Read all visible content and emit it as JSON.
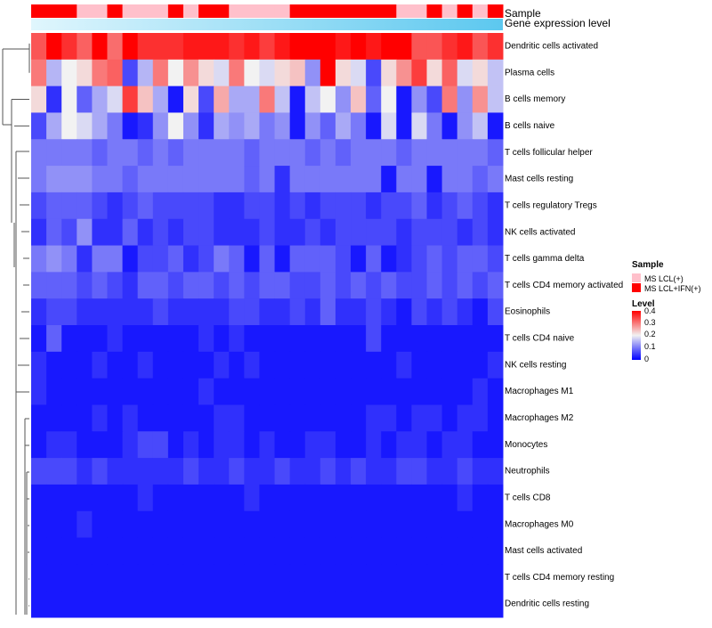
{
  "chart_data": {
    "type": "heatmap",
    "title": "",
    "annotation_rows": [
      {
        "name": "Sample",
        "kind": "categorical"
      },
      {
        "name": "Gene expression level",
        "kind": "continuous"
      }
    ],
    "sample_groups": [
      "MS LCL(+)",
      "MS LCL+IFN(+)"
    ],
    "sample_group_colors": {
      "MS LCL(+)": "#ffc0cb",
      "MS LCL+IFN(+)": "#ff0000"
    },
    "sample_annotation": [
      1,
      1,
      1,
      0,
      0,
      1,
      0,
      0,
      0,
      1,
      0,
      1,
      1,
      0,
      0,
      0,
      0,
      1,
      1,
      1,
      1,
      1,
      1,
      1,
      0,
      0,
      1,
      0,
      1,
      0,
      1
    ],
    "gene_expression_color": "#87ceeb",
    "row_labels": [
      "Dendritic cells activated",
      "Plasma cells",
      "B cells memory",
      "B cells naive",
      "T cells follicular helper",
      "Mast cells resting",
      "T cells regulatory  Tregs",
      "NK cells activated",
      "T cells gamma delta",
      "T cells CD4 memory activated",
      "Eosinophils",
      "T cells CD4 naive",
      "NK cells resting",
      "Macrophages M1",
      "Macrophages M2",
      "Monocytes",
      "Neutrophils",
      "T cells CD8",
      "Macrophages M0",
      "Mast cells activated",
      "T cells CD4 memory resting",
      "Dendritic cells resting"
    ],
    "values": [
      [
        0.33,
        0.4,
        0.36,
        0.32,
        0.4,
        0.31,
        0.4,
        0.36,
        0.36,
        0.36,
        0.38,
        0.38,
        0.38,
        0.36,
        0.38,
        0.35,
        0.38,
        0.4,
        0.4,
        0.4,
        0.38,
        0.4,
        0.38,
        0.4,
        0.4,
        0.33,
        0.33,
        0.36,
        0.38,
        0.33,
        0.36
      ],
      [
        0.3,
        0.15,
        0.2,
        0.22,
        0.3,
        0.32,
        0.06,
        0.15,
        0.3,
        0.2,
        0.28,
        0.22,
        0.18,
        0.3,
        0.2,
        0.18,
        0.22,
        0.24,
        0.12,
        0.4,
        0.22,
        0.18,
        0.06,
        0.22,
        0.28,
        0.35,
        0.22,
        0.32,
        0.18,
        0.22,
        0.16
      ],
      [
        0.22,
        0.04,
        0.2,
        0.08,
        0.14,
        0.18,
        0.35,
        0.24,
        0.14,
        0.02,
        0.22,
        0.06,
        0.26,
        0.14,
        0.14,
        0.3,
        0.16,
        0.02,
        0.16,
        0.2,
        0.12,
        0.24,
        0.08,
        0.2,
        0.02,
        0.12,
        0.06,
        0.3,
        0.12,
        0.28,
        0.16
      ],
      [
        0.06,
        0.14,
        0.2,
        0.18,
        0.14,
        0.1,
        0.02,
        0.04,
        0.12,
        0.2,
        0.12,
        0.04,
        0.14,
        0.12,
        0.14,
        0.1,
        0.12,
        0.02,
        0.12,
        0.08,
        0.14,
        0.1,
        0.02,
        0.18,
        0.02,
        0.18,
        0.1,
        0.02,
        0.12,
        0.16,
        0.02
      ],
      [
        0.1,
        0.1,
        0.1,
        0.1,
        0.08,
        0.1,
        0.1,
        0.08,
        0.1,
        0.08,
        0.1,
        0.1,
        0.1,
        0.1,
        0.08,
        0.1,
        0.1,
        0.1,
        0.08,
        0.1,
        0.08,
        0.1,
        0.1,
        0.1,
        0.08,
        0.1,
        0.1,
        0.1,
        0.1,
        0.1,
        0.08
      ],
      [
        0.1,
        0.12,
        0.12,
        0.12,
        0.1,
        0.1,
        0.08,
        0.1,
        0.1,
        0.1,
        0.1,
        0.1,
        0.1,
        0.1,
        0.08,
        0.1,
        0.04,
        0.1,
        0.1,
        0.1,
        0.1,
        0.1,
        0.1,
        0.02,
        0.1,
        0.1,
        0.02,
        0.1,
        0.1,
        0.08,
        0.1
      ],
      [
        0.06,
        0.08,
        0.08,
        0.08,
        0.06,
        0.04,
        0.06,
        0.08,
        0.06,
        0.06,
        0.06,
        0.06,
        0.04,
        0.04,
        0.06,
        0.06,
        0.04,
        0.06,
        0.04,
        0.06,
        0.06,
        0.06,
        0.04,
        0.06,
        0.06,
        0.08,
        0.04,
        0.06,
        0.08,
        0.06,
        0.04
      ],
      [
        0.04,
        0.08,
        0.06,
        0.12,
        0.04,
        0.04,
        0.08,
        0.04,
        0.06,
        0.04,
        0.06,
        0.06,
        0.04,
        0.04,
        0.04,
        0.06,
        0.04,
        0.04,
        0.06,
        0.04,
        0.06,
        0.06,
        0.06,
        0.06,
        0.04,
        0.06,
        0.06,
        0.06,
        0.04,
        0.06,
        0.04
      ],
      [
        0.1,
        0.12,
        0.1,
        0.04,
        0.1,
        0.1,
        0.02,
        0.06,
        0.06,
        0.08,
        0.04,
        0.06,
        0.1,
        0.08,
        0.02,
        0.08,
        0.02,
        0.08,
        0.08,
        0.08,
        0.06,
        0.02,
        0.08,
        0.02,
        0.04,
        0.06,
        0.08,
        0.06,
        0.08,
        0.08,
        0.06
      ],
      [
        0.08,
        0.08,
        0.08,
        0.06,
        0.08,
        0.06,
        0.04,
        0.08,
        0.08,
        0.06,
        0.08,
        0.08,
        0.06,
        0.08,
        0.06,
        0.08,
        0.08,
        0.06,
        0.06,
        0.08,
        0.06,
        0.08,
        0.06,
        0.08,
        0.06,
        0.06,
        0.08,
        0.06,
        0.08,
        0.06,
        0.08
      ],
      [
        0.04,
        0.06,
        0.06,
        0.04,
        0.04,
        0.04,
        0.04,
        0.04,
        0.06,
        0.04,
        0.04,
        0.04,
        0.04,
        0.06,
        0.06,
        0.04,
        0.04,
        0.06,
        0.04,
        0.08,
        0.04,
        0.04,
        0.06,
        0.04,
        0.02,
        0.06,
        0.04,
        0.06,
        0.04,
        0.02,
        0.06
      ],
      [
        0.02,
        0.08,
        0.02,
        0.02,
        0.02,
        0.04,
        0.02,
        0.02,
        0.02,
        0.02,
        0.02,
        0.04,
        0.02,
        0.04,
        0.02,
        0.02,
        0.02,
        0.02,
        0.02,
        0.02,
        0.02,
        0.02,
        0.06,
        0.02,
        0.02,
        0.02,
        0.02,
        0.02,
        0.02,
        0.02,
        0.02
      ],
      [
        0.04,
        0.02,
        0.02,
        0.02,
        0.04,
        0.02,
        0.02,
        0.04,
        0.02,
        0.02,
        0.02,
        0.02,
        0.04,
        0.02,
        0.04,
        0.02,
        0.02,
        0.02,
        0.02,
        0.02,
        0.02,
        0.02,
        0.02,
        0.02,
        0.04,
        0.02,
        0.02,
        0.02,
        0.02,
        0.02,
        0.04
      ],
      [
        0.04,
        0.02,
        0.02,
        0.02,
        0.02,
        0.02,
        0.02,
        0.02,
        0.02,
        0.02,
        0.02,
        0.04,
        0.02,
        0.02,
        0.02,
        0.02,
        0.02,
        0.02,
        0.02,
        0.02,
        0.02,
        0.02,
        0.02,
        0.02,
        0.02,
        0.02,
        0.02,
        0.02,
        0.02,
        0.04,
        0.02
      ],
      [
        0.02,
        0.02,
        0.02,
        0.02,
        0.04,
        0.02,
        0.04,
        0.02,
        0.02,
        0.02,
        0.02,
        0.02,
        0.04,
        0.04,
        0.02,
        0.02,
        0.02,
        0.02,
        0.02,
        0.02,
        0.02,
        0.02,
        0.04,
        0.04,
        0.02,
        0.04,
        0.04,
        0.02,
        0.04,
        0.04,
        0.02
      ],
      [
        0.02,
        0.04,
        0.04,
        0.02,
        0.02,
        0.02,
        0.04,
        0.06,
        0.06,
        0.02,
        0.04,
        0.02,
        0.04,
        0.04,
        0.02,
        0.04,
        0.02,
        0.02,
        0.04,
        0.04,
        0.02,
        0.02,
        0.04,
        0.02,
        0.04,
        0.04,
        0.02,
        0.04,
        0.04,
        0.02,
        0.02
      ],
      [
        0.06,
        0.06,
        0.06,
        0.04,
        0.06,
        0.04,
        0.04,
        0.04,
        0.04,
        0.04,
        0.06,
        0.04,
        0.04,
        0.06,
        0.04,
        0.04,
        0.06,
        0.04,
        0.04,
        0.06,
        0.04,
        0.06,
        0.04,
        0.04,
        0.06,
        0.06,
        0.04,
        0.04,
        0.06,
        0.04,
        0.04
      ],
      [
        0.02,
        0.02,
        0.02,
        0.02,
        0.02,
        0.02,
        0.02,
        0.04,
        0.02,
        0.02,
        0.02,
        0.02,
        0.02,
        0.02,
        0.04,
        0.02,
        0.02,
        0.02,
        0.02,
        0.02,
        0.02,
        0.02,
        0.02,
        0.02,
        0.02,
        0.02,
        0.02,
        0.02,
        0.04,
        0.02,
        0.02
      ],
      [
        0.02,
        0.02,
        0.02,
        0.04,
        0.02,
        0.02,
        0.02,
        0.02,
        0.02,
        0.02,
        0.02,
        0.02,
        0.02,
        0.02,
        0.02,
        0.02,
        0.02,
        0.02,
        0.02,
        0.02,
        0.02,
        0.02,
        0.02,
        0.02,
        0.02,
        0.02,
        0.02,
        0.02,
        0.02,
        0.02,
        0.02
      ],
      [
        0.02,
        0.02,
        0.02,
        0.02,
        0.02,
        0.02,
        0.02,
        0.02,
        0.02,
        0.02,
        0.02,
        0.02,
        0.02,
        0.02,
        0.02,
        0.02,
        0.02,
        0.02,
        0.02,
        0.02,
        0.02,
        0.02,
        0.02,
        0.02,
        0.02,
        0.02,
        0.02,
        0.02,
        0.02,
        0.02,
        0.02
      ],
      [
        0.02,
        0.02,
        0.02,
        0.02,
        0.02,
        0.02,
        0.02,
        0.02,
        0.02,
        0.02,
        0.02,
        0.02,
        0.02,
        0.02,
        0.02,
        0.02,
        0.02,
        0.02,
        0.02,
        0.02,
        0.02,
        0.02,
        0.02,
        0.02,
        0.02,
        0.02,
        0.02,
        0.02,
        0.02,
        0.02,
        0.02
      ],
      [
        0.02,
        0.02,
        0.02,
        0.02,
        0.02,
        0.02,
        0.02,
        0.02,
        0.02,
        0.02,
        0.02,
        0.02,
        0.02,
        0.02,
        0.02,
        0.02,
        0.02,
        0.02,
        0.02,
        0.02,
        0.02,
        0.02,
        0.02,
        0.02,
        0.02,
        0.02,
        0.02,
        0.02,
        0.02,
        0.02,
        0.02
      ]
    ],
    "color_scale": {
      "min": 0,
      "mid": 0.2,
      "max": 0.4,
      "low": "#0000ff",
      "midcolor": "#f2f2f2",
      "high": "#ff0000"
    },
    "legend": {
      "sample_title": "Sample",
      "level_title": "Level",
      "level_ticks": [
        "0.4",
        "0.3",
        "0.2",
        "0.1",
        "0"
      ],
      "placement": "right"
    },
    "dendrogram": "row clustering shown on left"
  }
}
